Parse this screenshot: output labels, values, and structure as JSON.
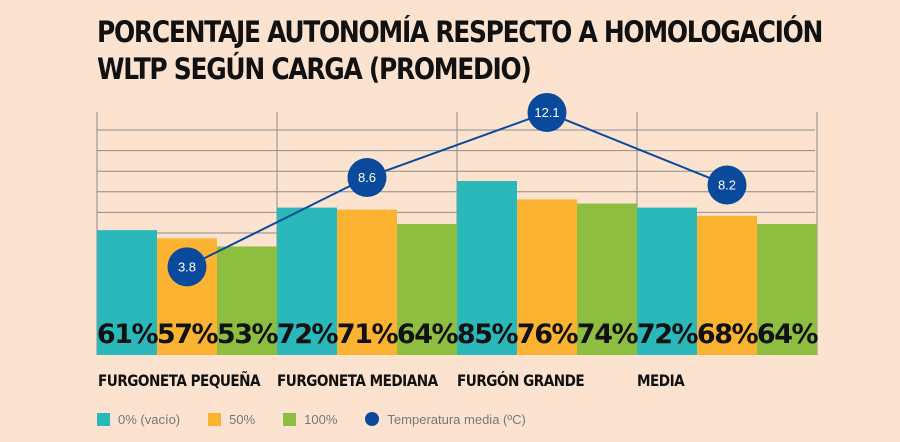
{
  "chart_data": {
    "type": "bar+line",
    "title_lines": [
      "PORCENTAJE AUTONOMÍA RESPECTO A HOMOLOGACIÓN",
      "WLTP SEGÚN CARGA (PROMEDIO)"
    ],
    "categories": [
      "FURGONETA PEQUEÑA",
      "FURGONETA MEDIANA",
      "FURGÓN GRANDE",
      "MEDIA"
    ],
    "series": [
      {
        "name": "0% (vacío)",
        "values": [
          61,
          72,
          85,
          72
        ],
        "labels": [
          "61%",
          "72%",
          "85%",
          "72%"
        ],
        "color": "#2bb8bb"
      },
      {
        "name": "50%",
        "values": [
          57,
          71,
          76,
          68
        ],
        "labels": [
          "57%",
          "71%",
          "76%",
          "68%"
        ],
        "color": "#fcb331"
      },
      {
        "name": "100%",
        "values": [
          53,
          64,
          74,
          64
        ],
        "labels": [
          "53%",
          "64%",
          "74%",
          "64%"
        ],
        "color": "#8dbe40"
      }
    ],
    "line_series": {
      "name": "Temperatura media (ºC)",
      "values": [
        3.8,
        8.6,
        12.1,
        8.2
      ],
      "labels": [
        "3.8",
        "8.6",
        "12.1",
        "8.2"
      ],
      "color": "#0a4a9c"
    },
    "grid": true,
    "legend_position": "bottom-left"
  },
  "legend": [
    {
      "label": "0% (vacío)",
      "color": "#2bb8bb",
      "shape": "square"
    },
    {
      "label": "50%",
      "color": "#fcb331",
      "shape": "square"
    },
    {
      "label": "100%",
      "color": "#8dbe40",
      "shape": "square"
    },
    {
      "label": "Temperatura media (ºC)",
      "color": "#0a4a9c",
      "shape": "circle"
    }
  ]
}
